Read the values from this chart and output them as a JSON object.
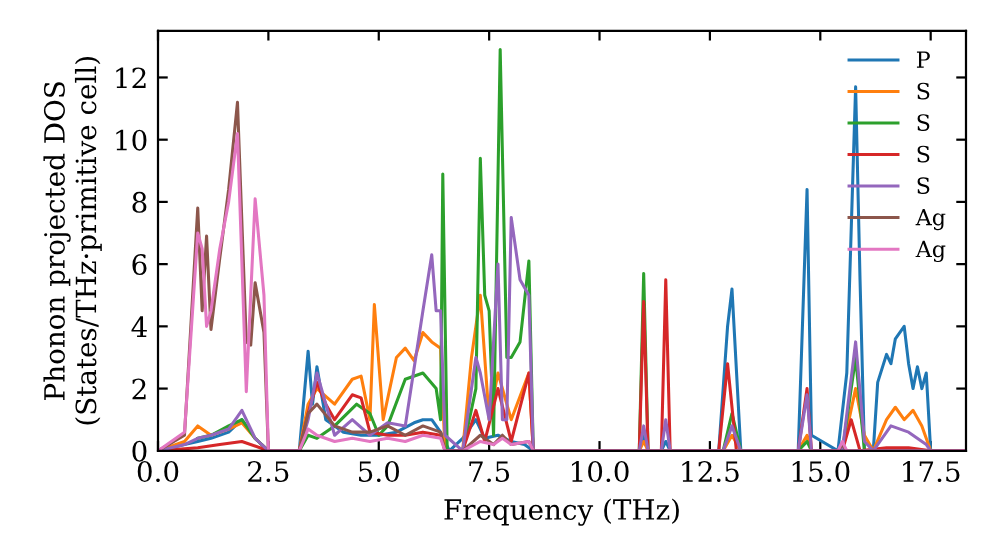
{
  "chart_data": {
    "type": "line",
    "xlabel": "Frequency (THz)",
    "ylabel": "Phonon projected DOS\n(States/THz·primitive cell)",
    "xlim": [
      0,
      18.3
    ],
    "ylim": [
      0,
      13.5
    ],
    "xticks": [
      {
        "value": 0,
        "label": "0.0"
      },
      2.5,
      {
        "value": 5,
        "label": "5.0"
      },
      7.5,
      {
        "value": 10,
        "label": "10.0"
      },
      12.5,
      {
        "value": 15,
        "label": "15.0"
      },
      17.5
    ],
    "yticks": [
      0,
      2,
      4,
      6,
      8,
      10,
      12
    ],
    "legend": "top right",
    "grid": false,
    "line_style": "solid",
    "marker": "none",
    "series": [
      {
        "name": "P",
        "color": "#1f77b4",
        "x": [
          0,
          0.6,
          0.9,
          1.2,
          1.6,
          1.9,
          2.2,
          2.5,
          3.2,
          3.4,
          3.5,
          3.6,
          3.8,
          4.2,
          4.6,
          5.0,
          5.4,
          5.8,
          6.0,
          6.2,
          6.4,
          6.6,
          6.9,
          7.2,
          7.4,
          7.7,
          8.0,
          8.3,
          8.5,
          10.9,
          11.0,
          11.1,
          11.4,
          11.5,
          11.6,
          12.7,
          12.9,
          13.0,
          13.2,
          14.5,
          14.7,
          14.8,
          15.4,
          15.6,
          15.8,
          15.9,
          16.0,
          16.2,
          16.3,
          16.5,
          16.6,
          16.7,
          16.9,
          17.0,
          17.1,
          17.2,
          17.3,
          17.4,
          17.5,
          18.3
        ],
        "values": [
          0,
          0.2,
          0.3,
          0.4,
          0.6,
          1.0,
          0.4,
          0,
          0,
          3.2,
          1.5,
          2.7,
          1.0,
          0.6,
          0.5,
          0.5,
          0.6,
          0.9,
          1.0,
          1.0,
          0.6,
          0,
          0.4,
          1.0,
          0.4,
          0.5,
          0.3,
          0.2,
          0,
          0,
          0.5,
          0,
          0,
          0.3,
          0,
          0,
          4.0,
          5.2,
          0,
          0,
          8.4,
          0.5,
          0,
          2.5,
          11.7,
          5.5,
          0,
          0,
          2.2,
          3.1,
          2.8,
          3.6,
          4.0,
          2.8,
          2.0,
          2.7,
          2.0,
          2.5,
          0,
          0
        ]
      },
      {
        "name": "S",
        "color": "#ff7f0e",
        "x": [
          0,
          0.6,
          0.9,
          1.2,
          1.6,
          1.9,
          2.2,
          2.5,
          3.2,
          3.4,
          3.6,
          4.0,
          4.4,
          4.6,
          4.8,
          4.9,
          5.1,
          5.4,
          5.6,
          5.8,
          6.0,
          6.2,
          6.4,
          6.5,
          6.9,
          7.1,
          7.3,
          7.5,
          7.7,
          8.0,
          8.4,
          8.5,
          10.9,
          11.0,
          11.1,
          12.8,
          13.0,
          13.2,
          14.5,
          14.7,
          14.8,
          15.5,
          15.8,
          16.0,
          16.2,
          16.5,
          16.7,
          16.9,
          17.1,
          17.3,
          17.5,
          18.3
        ],
        "values": [
          0,
          0.3,
          0.8,
          0.5,
          0.7,
          0.9,
          0.4,
          0,
          0,
          1.5,
          2.0,
          1.5,
          2.3,
          2.4,
          1.0,
          4.7,
          1.0,
          3.0,
          3.3,
          2.9,
          3.8,
          3.5,
          3.3,
          0,
          0,
          3.0,
          5.0,
          1.0,
          2.5,
          1.0,
          2.5,
          0,
          0,
          0.3,
          0,
          0,
          0.5,
          0,
          0,
          0.5,
          0,
          0,
          2.0,
          0.5,
          0,
          1.0,
          1.4,
          1.0,
          1.3,
          0.8,
          0,
          0
        ]
      },
      {
        "name": "S",
        "color": "#2ca02c",
        "x": [
          0.9,
          1.2,
          1.6,
          1.9,
          2.2,
          2.5,
          3.2,
          3.4,
          3.6,
          4.0,
          4.5,
          4.8,
          5.0,
          5.2,
          5.6,
          6.0,
          6.3,
          6.4,
          6.45,
          6.55,
          6.9,
          7.2,
          7.3,
          7.4,
          7.5,
          7.6,
          7.75,
          7.9,
          8.0,
          8.2,
          8.4,
          8.5,
          10.9,
          11.0,
          11.1,
          12.8,
          13.0,
          13.2,
          14.5,
          14.7,
          14.8,
          15.5,
          15.8,
          16.0,
          18.3
        ],
        "values": [
          0.4,
          0.5,
          0.8,
          1.0,
          0.4,
          0,
          0,
          0.5,
          0.4,
          0.8,
          1.5,
          1.2,
          0.5,
          0.8,
          2.3,
          2.5,
          2.0,
          1.0,
          8.9,
          0,
          0,
          2.0,
          9.4,
          5.0,
          4.5,
          0.5,
          12.9,
          3.0,
          3.0,
          3.5,
          6.1,
          0,
          0,
          5.7,
          0,
          0,
          1.2,
          0,
          0,
          0.3,
          0,
          0,
          3.0,
          0,
          0
        ]
      },
      {
        "name": "S",
        "color": "#d62728",
        "x": [
          0,
          0.9,
          1.4,
          1.9,
          2.5,
          3.2,
          3.4,
          3.6,
          3.8,
          4.0,
          4.4,
          4.6,
          4.8,
          5.2,
          5.6,
          6.0,
          6.4,
          6.5,
          6.9,
          7.2,
          7.4,
          7.7,
          8.0,
          8.4,
          8.5,
          10.9,
          11.0,
          11.1,
          11.4,
          11.5,
          11.6,
          12.7,
          12.9,
          13.1,
          14.5,
          14.7,
          14.8,
          15.5,
          15.7,
          15.9,
          16.5,
          17.0,
          17.5,
          18.3
        ],
        "values": [
          0,
          0.1,
          0.2,
          0.3,
          0,
          0,
          1.2,
          2.2,
          1.5,
          1.0,
          1.8,
          1.7,
          0.6,
          0.5,
          0.5,
          0.6,
          0.5,
          0,
          0,
          1.3,
          0.3,
          2.0,
          0.3,
          2.5,
          0,
          0,
          4.8,
          0,
          0,
          5.5,
          0,
          0,
          2.8,
          0,
          0,
          2.0,
          0,
          0,
          1.0,
          0,
          0.1,
          0.1,
          0,
          0
        ]
      },
      {
        "name": "S",
        "color": "#9467bd",
        "x": [
          0,
          0.6,
          0.9,
          1.2,
          1.6,
          1.9,
          2.2,
          2.5,
          3.2,
          3.4,
          3.6,
          4.0,
          4.4,
          4.8,
          5.2,
          5.6,
          6.0,
          6.2,
          6.3,
          6.4,
          6.5,
          6.9,
          7.2,
          7.3,
          7.5,
          7.7,
          7.8,
          7.9,
          8.0,
          8.2,
          8.4,
          8.5,
          10.9,
          11.0,
          11.1,
          11.4,
          11.5,
          11.6,
          12.8,
          13.0,
          13.2,
          14.5,
          14.7,
          14.8,
          15.5,
          15.8,
          16.0,
          16.2,
          16.6,
          17.0,
          17.4,
          17.5,
          18.3
        ],
        "values": [
          0,
          0.2,
          0.4,
          0.5,
          0.7,
          1.3,
          0.4,
          0,
          0,
          1.0,
          2.5,
          0.5,
          1.0,
          0.5,
          0.9,
          0.8,
          4.5,
          6.3,
          4.5,
          4.5,
          0.5,
          0,
          3.0,
          2.5,
          1.0,
          6.0,
          1.0,
          1.0,
          7.5,
          5.5,
          5.0,
          0,
          0,
          0.8,
          0,
          0,
          1.0,
          0,
          0,
          0.8,
          0,
          0,
          1.8,
          0,
          0,
          3.5,
          0.3,
          0,
          0.8,
          0.6,
          0.2,
          0,
          0
        ]
      },
      {
        "name": "Ag",
        "color": "#8c564b",
        "x": [
          0,
          0.6,
          0.9,
          1.0,
          1.1,
          1.2,
          1.4,
          1.6,
          1.8,
          2.0,
          2.1,
          2.2,
          2.4,
          2.5,
          3.2,
          3.4,
          3.6,
          4.0,
          4.4,
          4.8,
          5.2,
          5.6,
          6.0,
          6.4,
          6.5,
          6.9,
          7.3,
          7.6,
          7.8,
          8.0,
          8.4,
          8.5,
          15.4,
          15.5,
          15.6,
          18.3
        ],
        "values": [
          0,
          0.5,
          7.8,
          4.5,
          6.9,
          3.9,
          6.2,
          8.4,
          11.2,
          3.5,
          3.4,
          5.4,
          3.8,
          0,
          0,
          1.2,
          1.5,
          0.8,
          0.6,
          0.6,
          0.8,
          0.5,
          0.8,
          0.6,
          0,
          0,
          0.5,
          0.2,
          0.5,
          0.2,
          0.3,
          0,
          0,
          0.2,
          0,
          0
        ]
      },
      {
        "name": "Ag",
        "color": "#e377c2",
        "x": [
          0,
          0.6,
          0.9,
          1.0,
          1.1,
          1.2,
          1.4,
          1.6,
          1.8,
          2.0,
          2.2,
          2.4,
          2.5,
          3.2,
          3.4,
          3.6,
          4.0,
          4.4,
          4.8,
          5.2,
          5.6,
          6.0,
          6.4,
          6.5,
          6.9,
          7.3,
          7.6,
          7.8,
          8.0,
          8.4,
          8.5,
          15.4,
          15.5,
          15.6,
          18.3
        ],
        "values": [
          0,
          0.6,
          7.0,
          6.5,
          4.0,
          4.5,
          6.5,
          8.0,
          10.2,
          1.9,
          8.1,
          5.0,
          0,
          0,
          0.7,
          0.5,
          0.3,
          0.4,
          0.3,
          0.4,
          0.3,
          0.5,
          0.4,
          0,
          0,
          0.3,
          0.2,
          0.4,
          0.2,
          0.3,
          0,
          0,
          0.3,
          0,
          0
        ]
      }
    ]
  }
}
